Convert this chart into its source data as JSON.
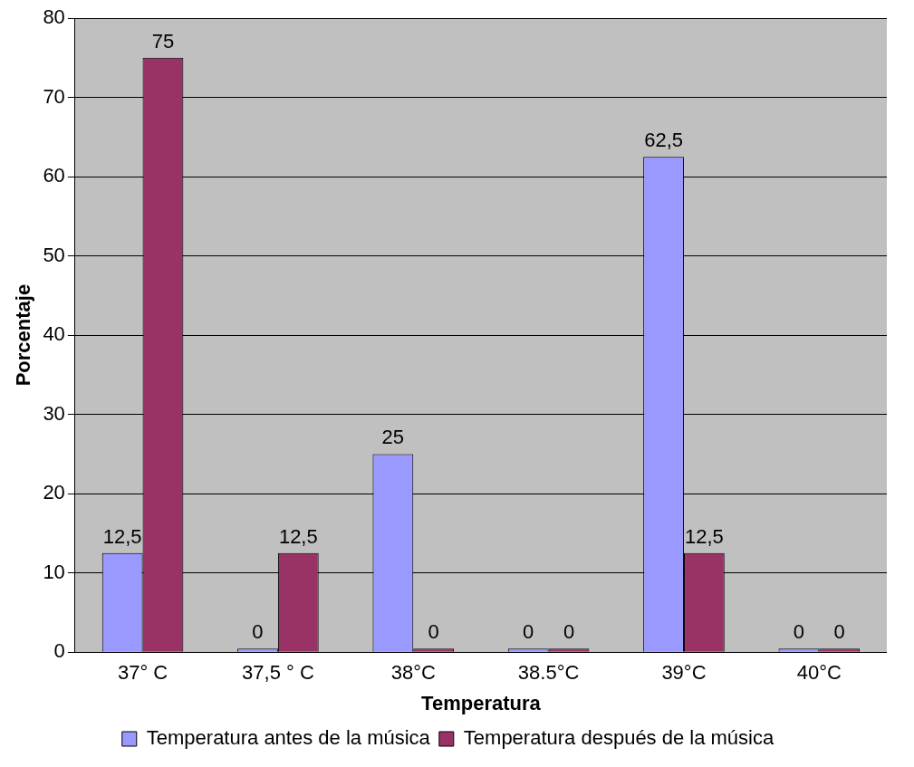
{
  "chart_data": {
    "type": "bar",
    "xlabel": "Temperatura",
    "ylabel": "Porcentaje",
    "categories": [
      "37° C",
      "37,5 ° C",
      "38°C",
      "38.5°C",
      "39°C",
      "40°C"
    ],
    "series": [
      {
        "name": "Temperatura antes de la música",
        "color": "#9999ff",
        "values": [
          12.5,
          0,
          25,
          0,
          62.5,
          0
        ],
        "value_labels": [
          "12,5",
          "0",
          "25",
          "0",
          "62,5",
          "0"
        ]
      },
      {
        "name": "Temperatura después de la música",
        "color": "#993366",
        "values": [
          75,
          12.5,
          0,
          0,
          12.5,
          0
        ],
        "value_labels": [
          "75",
          "12,5",
          "0",
          "0",
          "12,5",
          "0"
        ]
      }
    ],
    "ylim": [
      0,
      80
    ],
    "yticks": [
      0,
      10,
      20,
      30,
      40,
      50,
      60,
      70,
      80
    ],
    "grid": "y",
    "legend": "bottom"
  }
}
